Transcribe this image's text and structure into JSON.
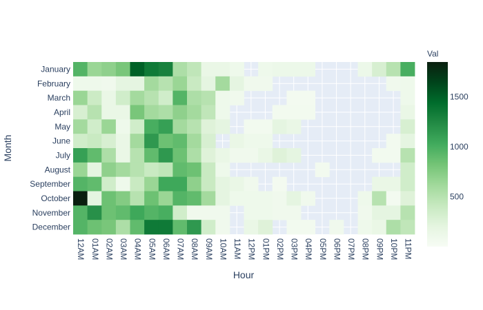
{
  "chart_data": {
    "type": "heatmap",
    "title": "",
    "xlabel": "Hour",
    "ylabel": "Month",
    "colorbar_title": "Val",
    "colorbar_ticks": [
      500,
      1000,
      1500
    ],
    "zmin": 0,
    "zmax": 1850,
    "colorscale": [
      "#f7fcf5",
      "#e5f5e0",
      "#c7e9c0",
      "#a1d99b",
      "#74c476",
      "#41ab5d",
      "#238b45",
      "#006d2c",
      "#00441b",
      "#0a1f0f"
    ],
    "plot_background": "#e5ecf6",
    "x": [
      "12AM",
      "01AM",
      "02AM",
      "03AM",
      "04AM",
      "05AM",
      "06AM",
      "07AM",
      "08AM",
      "09AM",
      "10AM",
      "11AM",
      "12PM",
      "01PM",
      "02PM",
      "03PM",
      "04PM",
      "05PM",
      "06PM",
      "07PM",
      "08PM",
      "09PM",
      "10PM",
      "11PM"
    ],
    "y": [
      "January",
      "February",
      "March",
      "April",
      "May",
      "June",
      "July",
      "August",
      "September",
      "October",
      "November",
      "December"
    ],
    "z": [
      [
        950,
        650,
        700,
        800,
        1500,
        1350,
        1300,
        550,
        450,
        150,
        150,
        100,
        null,
        100,
        120,
        120,
        120,
        null,
        null,
        null,
        120,
        300,
        500,
        1000
      ],
      [
        100,
        100,
        80,
        200,
        200,
        600,
        500,
        650,
        400,
        200,
        600,
        200,
        80,
        80,
        null,
        null,
        null,
        null,
        null,
        null,
        null,
        null,
        80,
        100
      ],
      [
        650,
        380,
        150,
        350,
        600,
        500,
        350,
        950,
        550,
        500,
        100,
        80,
        null,
        null,
        null,
        50,
        50,
        null,
        null,
        null,
        null,
        null,
        null,
        100
      ],
      [
        300,
        500,
        150,
        150,
        800,
        600,
        550,
        700,
        600,
        450,
        100,
        null,
        null,
        null,
        60,
        60,
        60,
        null,
        null,
        null,
        null,
        null,
        null,
        150
      ],
      [
        600,
        350,
        650,
        100,
        350,
        1000,
        1100,
        600,
        500,
        250,
        200,
        null,
        60,
        60,
        200,
        150,
        null,
        null,
        null,
        null,
        null,
        null,
        null,
        300
      ],
      [
        350,
        400,
        300,
        150,
        600,
        1150,
        850,
        900,
        600,
        300,
        null,
        150,
        100,
        100,
        null,
        null,
        null,
        null,
        null,
        null,
        null,
        null,
        60,
        200
      ],
      [
        1100,
        900,
        550,
        150,
        500,
        900,
        1150,
        850,
        550,
        250,
        150,
        80,
        80,
        150,
        250,
        200,
        null,
        null,
        null,
        null,
        null,
        60,
        60,
        500
      ],
      [
        650,
        200,
        700,
        600,
        500,
        400,
        450,
        900,
        850,
        400,
        100,
        null,
        null,
        null,
        null,
        null,
        null,
        60,
        null,
        null,
        null,
        null,
        null,
        350
      ],
      [
        950,
        900,
        350,
        100,
        400,
        650,
        1050,
        1050,
        700,
        400,
        200,
        150,
        80,
        null,
        50,
        null,
        null,
        null,
        null,
        null,
        null,
        150,
        150,
        350
      ],
      [
        1850,
        200,
        850,
        750,
        500,
        850,
        650,
        950,
        900,
        600,
        200,
        100,
        100,
        100,
        80,
        200,
        80,
        null,
        null,
        null,
        100,
        500,
        50,
        250
      ],
      [
        950,
        1200,
        850,
        900,
        1050,
        950,
        1000,
        350,
        80,
        80,
        80,
        null,
        100,
        100,
        80,
        80,
        null,
        null,
        null,
        null,
        80,
        200,
        200,
        500
      ],
      [
        950,
        850,
        800,
        550,
        900,
        1350,
        1350,
        900,
        1150,
        350,
        80,
        null,
        150,
        250,
        null,
        60,
        60,
        null,
        80,
        null,
        100,
        150,
        550,
        450
      ]
    ]
  }
}
